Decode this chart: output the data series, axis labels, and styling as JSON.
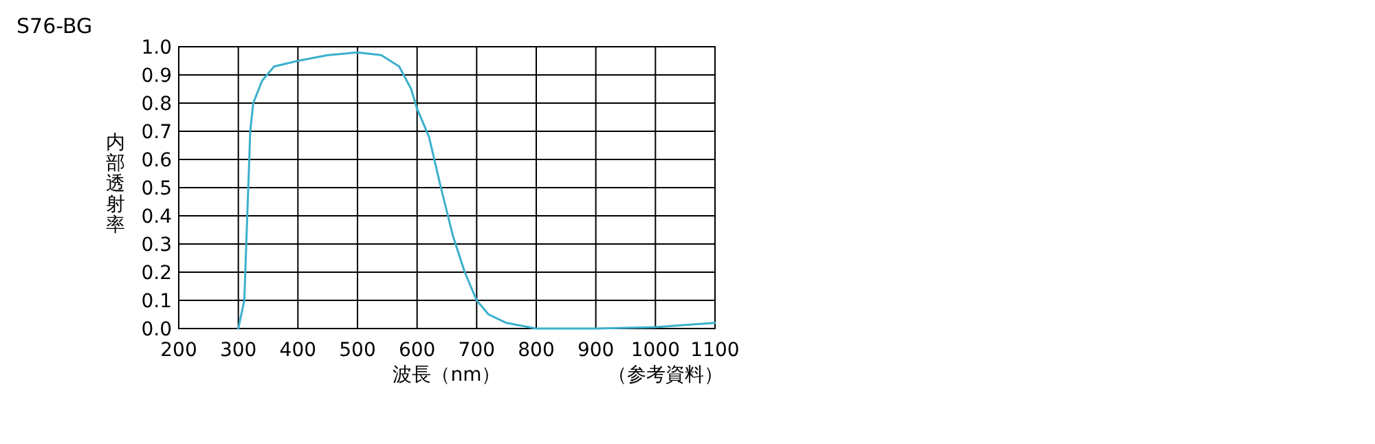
{
  "chart_data": {
    "type": "line",
    "title": "S76-BG",
    "xlabel": "波長（nm）",
    "ylabel": "内部透射率",
    "annotations": [
      "（参考資料）"
    ],
    "x": [
      300,
      310,
      315,
      320,
      325,
      340,
      360,
      400,
      450,
      500,
      540,
      570,
      590,
      600,
      620,
      640,
      660,
      680,
      700,
      720,
      750,
      800,
      900,
      1000,
      1100
    ],
    "series": [
      {
        "color": "#3ab0cc",
        "values": [
          0,
          0.1,
          0.4,
          0.7,
          0.8,
          0.88,
          0.93,
          0.95,
          0.97,
          0.98,
          0.97,
          0.93,
          0.85,
          0.78,
          0.68,
          0.5,
          0.33,
          0.2,
          0.1,
          0.05,
          0.02,
          0.0,
          0.0,
          0.005,
          0.02
        ]
      }
    ],
    "xlim": [
      200,
      1100
    ],
    "xticks": [
      200,
      300,
      400,
      500,
      600,
      700,
      800,
      900,
      1000,
      1100
    ],
    "ylim": [
      0,
      1
    ],
    "yticks": [
      {
        "value": 0,
        "label": "0.0"
      },
      0.1,
      0.2,
      0.3,
      0.4,
      0.5,
      0.6,
      0.7,
      0.8,
      0.9,
      {
        "value": 1,
        "label": "1.0"
      }
    ],
    "grid": true,
    "marker": "none",
    "line_style": "solid"
  }
}
